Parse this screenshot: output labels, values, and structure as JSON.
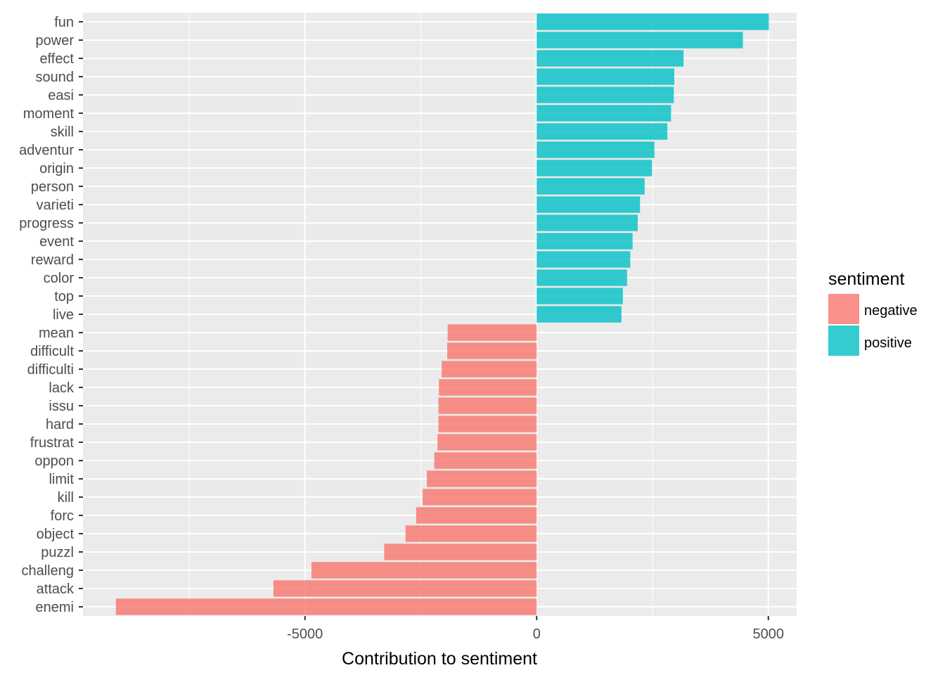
{
  "chart_data": {
    "type": "bar",
    "orientation": "horizontal",
    "categories": [
      "fun",
      "power",
      "effect",
      "sound",
      "easi",
      "moment",
      "skill",
      "adventur",
      "origin",
      "person",
      "varieti",
      "progress",
      "event",
      "reward",
      "color",
      "top",
      "live",
      "mean",
      "difficult",
      "difficulti",
      "lack",
      "issu",
      "hard",
      "frustrat",
      "oppon",
      "limit",
      "kill",
      "forc",
      "object",
      "puzzl",
      "challeng",
      "attack",
      "enemi"
    ],
    "values": [
      5010,
      4450,
      3170,
      2970,
      2960,
      2900,
      2820,
      2540,
      2490,
      2330,
      2230,
      2180,
      2070,
      2020,
      1950,
      1860,
      1830,
      -1920,
      -1930,
      -2050,
      -2110,
      -2120,
      -2120,
      -2140,
      -2210,
      -2370,
      -2460,
      -2600,
      -2830,
      -3290,
      -4860,
      -5680,
      -9080
    ],
    "sentiment": [
      "positive",
      "positive",
      "positive",
      "positive",
      "positive",
      "positive",
      "positive",
      "positive",
      "positive",
      "positive",
      "positive",
      "positive",
      "positive",
      "positive",
      "positive",
      "positive",
      "positive",
      "negative",
      "negative",
      "negative",
      "negative",
      "negative",
      "negative",
      "negative",
      "negative",
      "negative",
      "negative",
      "negative",
      "negative",
      "negative",
      "negative",
      "negative",
      "negative"
    ],
    "xlabel": "Contribution to sentiment",
    "ylabel": "",
    "xlim": [
      -9790,
      5610
    ],
    "xticks": [
      -5000,
      0,
      5000
    ],
    "xtick_labels": [
      "-5000",
      "0",
      "5000"
    ],
    "grid": true,
    "legend": {
      "title": "sentiment",
      "placement": "right",
      "entries": [
        {
          "name": "negative",
          "color": "#F8766D"
        },
        {
          "name": "positive",
          "color": "#00BFC4"
        }
      ]
    },
    "colors": {
      "negative": "#F8766D",
      "positive": "#00BFC4",
      "panel": "#EBEBEB",
      "grid_major": "#FFFFFF"
    }
  }
}
